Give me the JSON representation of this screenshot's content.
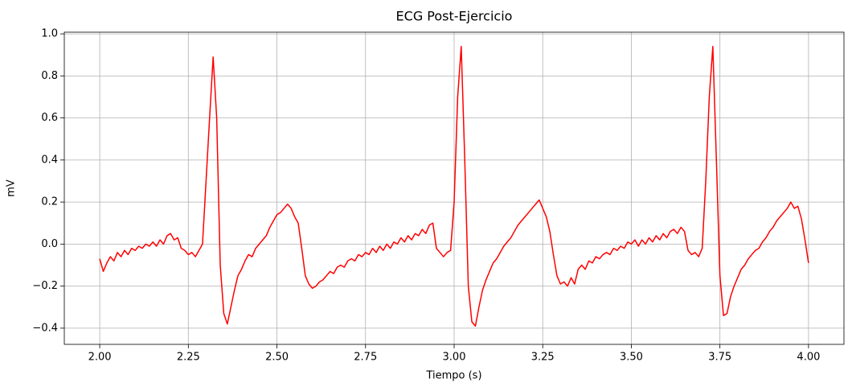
{
  "chart_data": {
    "type": "line",
    "title": "ECG Post-Ejercicio",
    "x_label": "Tiempo (s)",
    "y_label": "mV",
    "color": "#ff0000",
    "grid": true,
    "xlim": [
      1.9,
      4.1
    ],
    "ylim": [
      -0.477,
      1.008
    ],
    "xticks": [
      {
        "value": 2.0,
        "label": "2.00"
      },
      {
        "value": 2.25,
        "label": "2.25"
      },
      {
        "value": 2.5,
        "label": "2.50"
      },
      {
        "value": 2.75,
        "label": "2.75"
      },
      {
        "value": 3.0,
        "label": "3.00"
      },
      {
        "value": 3.25,
        "label": "3.25"
      },
      {
        "value": 3.5,
        "label": "3.50"
      },
      {
        "value": 3.75,
        "label": "3.75"
      },
      {
        "value": 4.0,
        "label": "4.00"
      }
    ],
    "yticks": [
      {
        "value": -0.4,
        "label": "−0.4"
      },
      {
        "value": -0.2,
        "label": "−0.2"
      },
      {
        "value": 0,
        "label": "0.0"
      },
      0.2,
      0.4,
      0.6,
      0.8,
      {
        "value": 1,
        "label": "1.0"
      }
    ],
    "x": [
      2,
      2.01,
      2.02,
      2.03,
      2.04,
      2.05,
      2.06,
      2.07,
      2.08,
      2.09,
      2.1,
      2.11,
      2.12,
      2.13,
      2.14,
      2.15,
      2.16,
      2.17,
      2.18,
      2.19,
      2.2,
      2.21,
      2.22,
      2.23,
      2.24,
      2.25,
      2.26,
      2.27,
      2.28,
      2.29,
      2.3,
      2.31,
      2.32,
      2.33,
      2.34,
      2.35,
      2.36,
      2.37,
      2.38,
      2.39,
      2.4,
      2.41,
      2.42,
      2.43,
      2.44,
      2.45,
      2.46,
      2.47,
      2.48,
      2.49,
      2.5,
      2.51,
      2.52,
      2.53,
      2.54,
      2.55,
      2.56,
      2.57,
      2.58,
      2.59,
      2.6,
      2.61,
      2.62,
      2.63,
      2.64,
      2.65,
      2.66,
      2.67,
      2.68,
      2.69,
      2.7,
      2.71,
      2.72,
      2.73,
      2.74,
      2.75,
      2.76,
      2.77,
      2.78,
      2.79,
      2.8,
      2.81,
      2.82,
      2.83,
      2.84,
      2.85,
      2.86,
      2.87,
      2.88,
      2.89,
      2.9,
      2.91,
      2.92,
      2.93,
      2.94,
      2.95,
      2.96,
      2.97,
      2.98,
      2.99,
      3,
      3.01,
      3.02,
      3.03,
      3.04,
      3.05,
      3.06,
      3.07,
      3.08,
      3.09,
      3.1,
      3.11,
      3.12,
      3.13,
      3.14,
      3.15,
      3.16,
      3.17,
      3.18,
      3.19,
      3.2,
      3.21,
      3.22,
      3.23,
      3.24,
      3.25,
      3.26,
      3.27,
      3.28,
      3.29,
      3.3,
      3.31,
      3.32,
      3.33,
      3.34,
      3.35,
      3.36,
      3.37,
      3.38,
      3.39,
      3.4,
      3.41,
      3.42,
      3.43,
      3.44,
      3.45,
      3.46,
      3.47,
      3.48,
      3.49,
      3.5,
      3.51,
      3.52,
      3.53,
      3.54,
      3.55,
      3.56,
      3.57,
      3.58,
      3.59,
      3.6,
      3.61,
      3.62,
      3.63,
      3.64,
      3.65,
      3.66,
      3.67,
      3.68,
      3.69,
      3.7,
      3.71,
      3.72,
      3.73,
      3.74,
      3.75,
      3.76,
      3.77,
      3.78,
      3.79,
      3.8,
      3.81,
      3.82,
      3.83,
      3.84,
      3.85,
      3.86,
      3.87,
      3.88,
      3.89,
      3.9,
      3.91,
      3.92,
      3.93,
      3.94,
      3.95,
      3.96,
      3.97,
      3.98,
      3.99,
      4
    ],
    "values": [
      -0.07,
      -0.13,
      -0.09,
      -0.06,
      -0.08,
      -0.04,
      -0.06,
      -0.03,
      -0.05,
      -0.02,
      -0.03,
      -0.01,
      -0.02,
      0.0,
      -0.01,
      0.01,
      -0.01,
      0.02,
      0.0,
      0.04,
      0.05,
      0.02,
      0.03,
      -0.02,
      -0.03,
      -0.05,
      -0.04,
      -0.06,
      -0.03,
      0.0,
      0.3,
      0.6,
      0.89,
      0.6,
      -0.1,
      -0.33,
      -0.38,
      -0.3,
      -0.22,
      -0.15,
      -0.12,
      -0.08,
      -0.05,
      -0.06,
      -0.02,
      0.0,
      0.02,
      0.04,
      0.08,
      0.11,
      0.14,
      0.15,
      0.17,
      0.19,
      0.17,
      0.13,
      0.1,
      -0.02,
      -0.15,
      -0.19,
      -0.21,
      -0.2,
      -0.18,
      -0.17,
      -0.15,
      -0.13,
      -0.14,
      -0.11,
      -0.1,
      -0.11,
      -0.08,
      -0.07,
      -0.08,
      -0.05,
      -0.06,
      -0.04,
      -0.05,
      -0.02,
      -0.04,
      -0.01,
      -0.03,
      0.0,
      -0.02,
      0.01,
      0.0,
      0.03,
      0.01,
      0.04,
      0.02,
      0.05,
      0.04,
      0.07,
      0.05,
      0.09,
      0.1,
      -0.02,
      -0.04,
      -0.06,
      -0.04,
      -0.03,
      0.2,
      0.7,
      0.94,
      0.4,
      -0.2,
      -0.37,
      -0.39,
      -0.3,
      -0.22,
      -0.17,
      -0.13,
      -0.09,
      -0.07,
      -0.04,
      -0.01,
      0.01,
      0.03,
      0.06,
      0.09,
      0.11,
      0.13,
      0.15,
      0.17,
      0.19,
      0.21,
      0.17,
      0.13,
      0.06,
      -0.05,
      -0.15,
      -0.19,
      -0.18,
      -0.2,
      -0.16,
      -0.19,
      -0.12,
      -0.1,
      -0.12,
      -0.08,
      -0.09,
      -0.06,
      -0.07,
      -0.05,
      -0.04,
      -0.05,
      -0.02,
      -0.03,
      -0.01,
      -0.02,
      0.01,
      0.0,
      0.02,
      -0.01,
      0.02,
      0.0,
      0.03,
      0.01,
      0.04,
      0.02,
      0.05,
      0.03,
      0.06,
      0.07,
      0.05,
      0.08,
      0.06,
      -0.03,
      -0.05,
      -0.04,
      -0.06,
      -0.02,
      0.3,
      0.7,
      0.94,
      0.4,
      -0.15,
      -0.34,
      -0.33,
      -0.25,
      -0.2,
      -0.16,
      -0.12,
      -0.1,
      -0.07,
      -0.05,
      -0.03,
      -0.02,
      0.01,
      0.03,
      0.06,
      0.08,
      0.11,
      0.13,
      0.15,
      0.17,
      0.2,
      0.17,
      0.18,
      0.12,
      0.02,
      -0.09
    ]
  }
}
